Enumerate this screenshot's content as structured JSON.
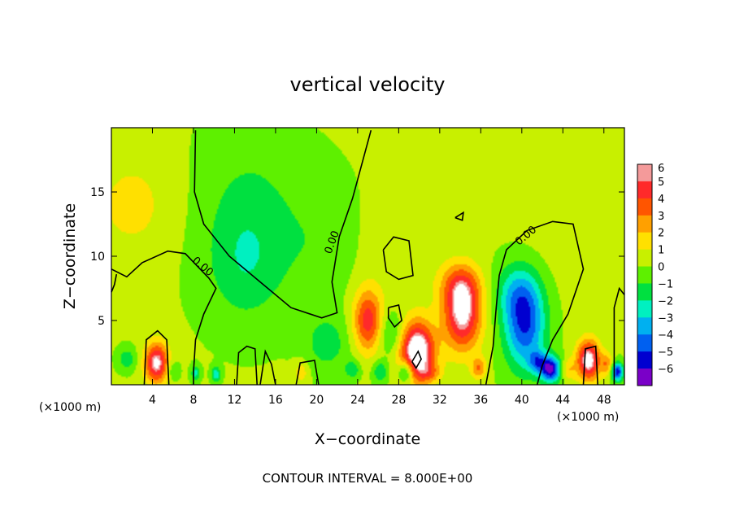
{
  "chart_data": {
    "type": "heatmap",
    "title": "vertical velocity",
    "xlabel": "X−coordinate",
    "ylabel": "Z−coordinate",
    "x_unit_left": "(×1000 m)",
    "x_unit_right": "(×1000 m)",
    "xlim": [
      0,
      50
    ],
    "ylim": [
      0,
      20
    ],
    "x_ticks": [
      4,
      8,
      12,
      16,
      20,
      24,
      28,
      32,
      36,
      40,
      44,
      48
    ],
    "x_tick_labels": [
      "4",
      "8",
      "12",
      "16",
      "20",
      "24",
      "28",
      "32",
      "36",
      "40",
      "44",
      "48"
    ],
    "y_ticks": [
      5,
      10,
      15
    ],
    "y_tick_labels": [
      "5",
      "10",
      "15"
    ],
    "colorbar": {
      "levels": [
        6,
        5,
        4,
        3,
        2,
        1,
        0,
        -1,
        -2,
        -3,
        -4,
        -5,
        -6
      ],
      "labels": [
        "6",
        "5",
        "4",
        "3",
        "2",
        "1",
        "0",
        "−1",
        "−2",
        "−3",
        "−4",
        "−5",
        "−6"
      ],
      "colors": [
        "#f49a9a",
        "#ff2a2a",
        "#ff5500",
        "#ffa000",
        "#ffe000",
        "#c8f000",
        "#5ef000",
        "#00e040",
        "#00f0c0",
        "#00b0f0",
        "#0060f0",
        "#0000d0",
        "#7a00c8"
      ]
    },
    "background_value": 0.6,
    "features": [
      {
        "x": 4.4,
        "z": 1.7,
        "sx": 0.8,
        "sz": 1.1,
        "value": 5.8
      },
      {
        "x": 6.0,
        "z": 1.1,
        "sx": 0.4,
        "sz": 0.5,
        "value": -1.5
      },
      {
        "x": 8.2,
        "z": 0.9,
        "sx": 0.3,
        "sz": 0.4,
        "value": -2.5
      },
      {
        "x": 10.2,
        "z": 0.8,
        "sx": 0.3,
        "sz": 0.4,
        "value": -3.0
      },
      {
        "x": 1.5,
        "z": 2.0,
        "sx": 0.6,
        "sz": 0.6,
        "value": -1.8
      },
      {
        "x": 13.5,
        "z": 13.0,
        "sx": 3.5,
        "sz": 4.5,
        "value": -1.4
      },
      {
        "x": 13.0,
        "z": 9.0,
        "sx": 2.5,
        "sz": 3.0,
        "value": -1.2
      },
      {
        "x": 2.0,
        "z": 14.0,
        "sx": 3.0,
        "sz": 3.0,
        "value": 1.2
      },
      {
        "x": 21.0,
        "z": 3.2,
        "sx": 1.5,
        "sz": 1.5,
        "value": -1.6
      },
      {
        "x": 25.0,
        "z": 5.0,
        "sx": 1.0,
        "sz": 1.7,
        "value": 4.5
      },
      {
        "x": 27.3,
        "z": 4.0,
        "sx": 0.9,
        "sz": 1.2,
        "value": -1.8
      },
      {
        "x": 29.8,
        "z": 2.6,
        "sx": 1.2,
        "sz": 1.6,
        "value": 7.2
      },
      {
        "x": 28.7,
        "z": 1.0,
        "sx": 0.5,
        "sz": 0.6,
        "value": -3.5
      },
      {
        "x": 26.2,
        "z": 1.0,
        "sx": 0.5,
        "sz": 0.6,
        "value": -2.2
      },
      {
        "x": 34.2,
        "z": 5.5,
        "sx": 1.3,
        "sz": 2.0,
        "value": 5.8
      },
      {
        "x": 34.0,
        "z": 7.8,
        "sx": 1.4,
        "sz": 1.2,
        "value": 2.4
      },
      {
        "x": 31.0,
        "z": 0.9,
        "sx": 0.8,
        "sz": 0.5,
        "value": 1.8
      },
      {
        "x": 35.8,
        "z": 1.3,
        "sx": 0.5,
        "sz": 0.6,
        "value": 2.8
      },
      {
        "x": 28.0,
        "z": 10.0,
        "sx": 3.0,
        "sz": 3.0,
        "value": 0.5
      },
      {
        "x": 40.3,
        "z": 4.6,
        "sx": 1.4,
        "sz": 2.4,
        "value": -5.0
      },
      {
        "x": 39.5,
        "z": 7.2,
        "sx": 1.5,
        "sz": 1.6,
        "value": -2.2
      },
      {
        "x": 42.8,
        "z": 1.2,
        "sx": 0.7,
        "sz": 0.7,
        "value": -6.2
      },
      {
        "x": 41.5,
        "z": 1.8,
        "sx": 0.6,
        "sz": 0.6,
        "value": -3.0
      },
      {
        "x": 46.5,
        "z": 1.9,
        "sx": 0.8,
        "sz": 1.1,
        "value": 6.2
      },
      {
        "x": 44.5,
        "z": 1.2,
        "sx": 0.5,
        "sz": 0.6,
        "value": 1.8
      },
      {
        "x": 49.3,
        "z": 1.0,
        "sx": 0.4,
        "sz": 0.5,
        "value": -5.8
      },
      {
        "x": 48.3,
        "z": 1.6,
        "sx": 0.4,
        "sz": 0.6,
        "value": 2.5
      },
      {
        "x": 23.5,
        "z": 1.2,
        "sx": 0.5,
        "sz": 0.5,
        "value": -2.0
      },
      {
        "x": 18.5,
        "z": 1.0,
        "sx": 0.5,
        "sz": 0.6,
        "value": 1.6
      },
      {
        "x": 20.5,
        "z": 11.0,
        "sx": 2.5,
        "sz": 3.5,
        "value": -0.8
      },
      {
        "x": 44.0,
        "z": 13.0,
        "sx": 3.0,
        "sz": 4.0,
        "value": 0.4
      }
    ],
    "contour_labels": [
      {
        "x": 8.7,
        "z": 9.0,
        "text": "0.00",
        "angle": 40
      },
      {
        "x": 21.8,
        "z": 11.0,
        "text": "0.00",
        "angle": -70
      },
      {
        "x": 40.6,
        "z": 11.4,
        "text": "0.00",
        "angle": -40
      }
    ],
    "zero_contours": [
      [
        [
          0,
          9.0
        ],
        [
          1.5,
          8.4
        ],
        [
          3.0,
          9.5
        ],
        [
          5.5,
          10.4
        ],
        [
          7.2,
          10.2
        ],
        [
          9.5,
          8.3
        ],
        [
          10.2,
          7.5
        ],
        [
          9.0,
          5.5
        ],
        [
          8.2,
          3.5
        ],
        [
          8.0,
          1.0
        ],
        [
          8.0,
          0
        ]
      ],
      [
        [
          8.2,
          19.8
        ],
        [
          8.1,
          15.0
        ],
        [
          9.0,
          12.5
        ],
        [
          11.5,
          10.0
        ],
        [
          14.5,
          8.0
        ],
        [
          17.5,
          6.0
        ],
        [
          20.5,
          5.2
        ],
        [
          22.0,
          5.6
        ],
        [
          21.5,
          8.0
        ],
        [
          22.2,
          11.5
        ],
        [
          23.5,
          14.5
        ],
        [
          25.3,
          19.8
        ]
      ],
      [
        [
          26.5,
          10.5
        ],
        [
          27.5,
          11.5
        ],
        [
          29.0,
          11.2
        ],
        [
          29.4,
          8.5
        ],
        [
          28.0,
          8.2
        ],
        [
          26.8,
          8.8
        ],
        [
          26.5,
          10.5
        ]
      ],
      [
        [
          27.0,
          6.0
        ],
        [
          28.0,
          6.2
        ],
        [
          28.3,
          5.0
        ],
        [
          27.6,
          4.5
        ],
        [
          27.0,
          5.2
        ],
        [
          27.0,
          6.0
        ]
      ],
      [
        [
          36.5,
          0
        ],
        [
          37.2,
          3.0
        ],
        [
          37.5,
          6.0
        ],
        [
          37.8,
          8.5
        ],
        [
          38.5,
          10.5
        ],
        [
          40.5,
          12.0
        ],
        [
          43.0,
          12.7
        ],
        [
          45.0,
          12.5
        ],
        [
          46.0,
          9.0
        ],
        [
          44.5,
          5.5
        ],
        [
          43.0,
          3.5
        ],
        [
          42.0,
          1.5
        ],
        [
          41.5,
          0
        ]
      ],
      [
        [
          29.3,
          1.8
        ],
        [
          29.9,
          2.6
        ],
        [
          30.2,
          2.0
        ],
        [
          29.7,
          1.3
        ],
        [
          29.3,
          1.8
        ]
      ],
      [
        [
          33.5,
          13.0
        ],
        [
          34.3,
          13.4
        ],
        [
          34.2,
          12.8
        ],
        [
          33.5,
          13.0
        ]
      ],
      [
        [
          3.2,
          0
        ],
        [
          3.4,
          3.5
        ],
        [
          4.5,
          4.2
        ],
        [
          5.4,
          3.5
        ],
        [
          5.6,
          0
        ]
      ],
      [
        [
          12.2,
          0
        ],
        [
          12.4,
          2.5
        ],
        [
          13.2,
          3.0
        ],
        [
          14.0,
          2.8
        ],
        [
          14.2,
          0
        ]
      ],
      [
        [
          14.5,
          0
        ],
        [
          15.0,
          2.6
        ],
        [
          15.6,
          1.6
        ],
        [
          16.0,
          0
        ]
      ],
      [
        [
          18.0,
          0
        ],
        [
          18.4,
          1.7
        ],
        [
          19.8,
          1.9
        ],
        [
          20.2,
          0
        ]
      ],
      [
        [
          46.0,
          0
        ],
        [
          46.2,
          2.8
        ],
        [
          47.2,
          3.0
        ],
        [
          47.4,
          0
        ]
      ],
      [
        [
          49.0,
          0
        ],
        [
          49.0,
          6.0
        ],
        [
          49.5,
          7.5
        ],
        [
          50.0,
          7.0
        ]
      ],
      [
        [
          0,
          7.2
        ],
        [
          0.3,
          7.8
        ],
        [
          0.5,
          8.6
        ]
      ]
    ]
  },
  "footer": {
    "contour_interval": "CONTOUR INTERVAL =  8.000E+00"
  }
}
